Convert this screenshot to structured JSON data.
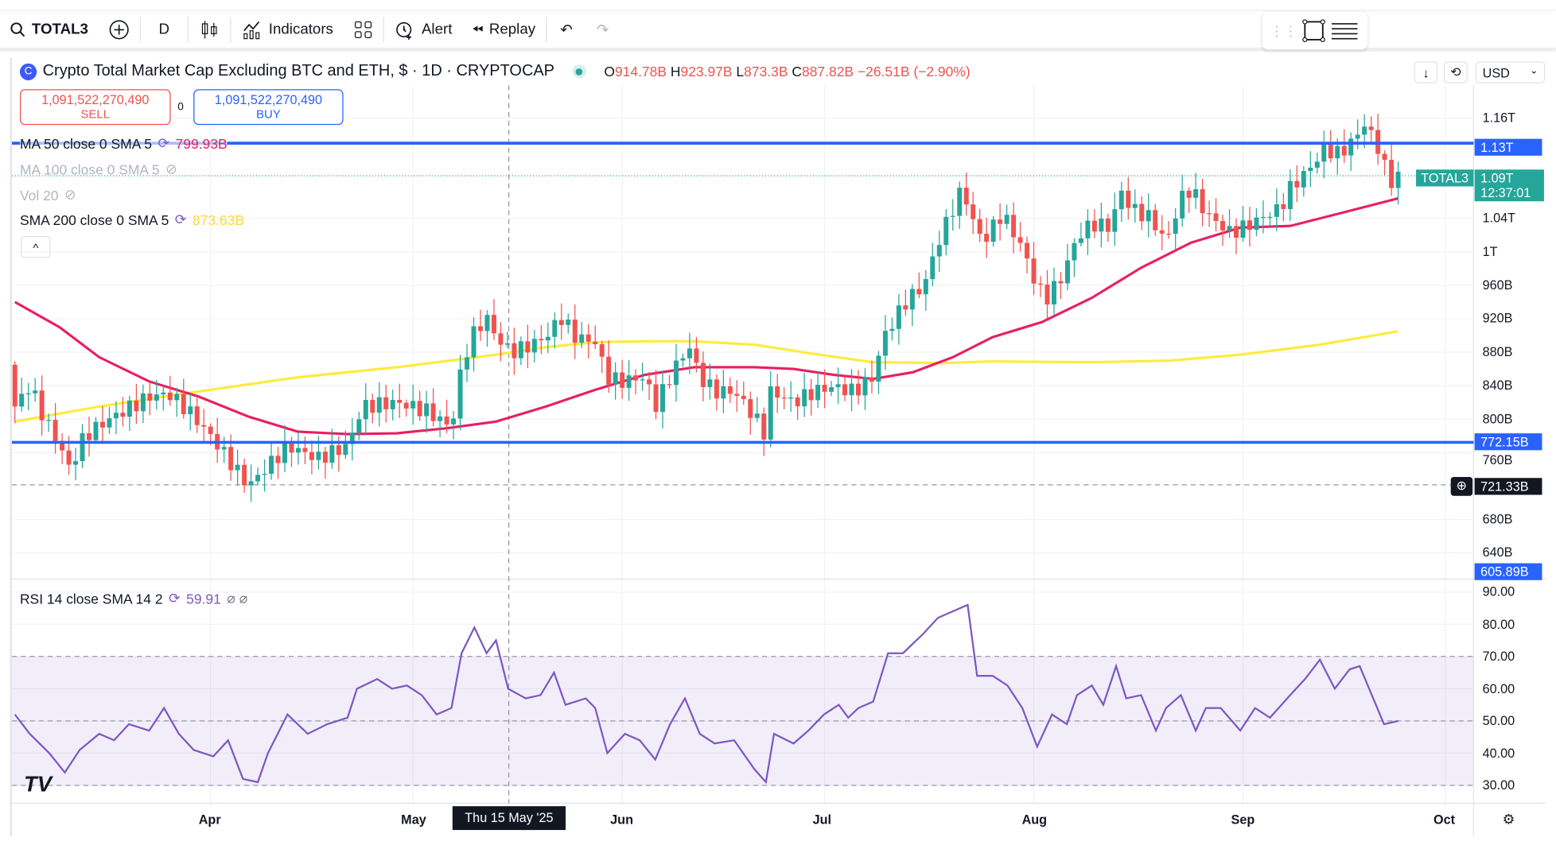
{
  "toolbar": {
    "symbol": "TOTAL3",
    "interval": "D",
    "indicators": "Indicators",
    "alert": "Alert",
    "replay": "Replay"
  },
  "header": {
    "title": "Crypto Total Market Cap Excluding BTC and ETH, $ · 1D · CRYPTOCAP",
    "o_label": "O",
    "o": "914.78B",
    "h_label": "H",
    "h": "923.97B",
    "l_label": "L",
    "l": "873.3B",
    "c_label": "C",
    "c": "887.82B",
    "change": "−26.51B (−2.90%)",
    "currency": "USD"
  },
  "trade": {
    "sell_price": "1,091,522,270,490",
    "sell": "SELL",
    "spread": "0",
    "buy_price": "1,091,522,270,490",
    "buy": "BUY"
  },
  "indicators": [
    {
      "label": "MA 50 close 0 SMA 5",
      "value": "799.93B"
    },
    {
      "label": "MA 100 close 0 SMA 5"
    },
    {
      "label": "Vol 20"
    },
    {
      "label": "SMA 200 close 0 SMA 5",
      "value": "873.63B"
    }
  ],
  "rsi": {
    "label": "RSI 14 close SMA 14 2",
    "value": "59.91"
  },
  "colors": {
    "up": "#26a69a",
    "down": "#ef5350",
    "ma50": "#e91e63",
    "sma200": "#ffeb3b",
    "rsi": "#7e57c2",
    "hline": "#2962ff"
  },
  "axis": {
    "price_ticks": [
      {
        "v": 1160,
        "t": "1.16T"
      },
      {
        "v": 1040,
        "t": "1.04T"
      },
      {
        "v": 1000,
        "t": "1T"
      },
      {
        "v": 960,
        "t": "960B"
      },
      {
        "v": 920,
        "t": "920B"
      },
      {
        "v": 880,
        "t": "880B"
      },
      {
        "v": 840,
        "t": "840B"
      },
      {
        "v": 800,
        "t": "800B"
      },
      {
        "v": 760,
        "t": "760B"
      },
      {
        "v": 680,
        "t": "680B"
      },
      {
        "v": 640,
        "t": "640B"
      }
    ],
    "rsi_ticks": [
      "90.00",
      "80.00",
      "70.00",
      "60.00",
      "50.00",
      "40.00",
      "30.00"
    ],
    "months": [
      {
        "day": 29,
        "t": "Apr"
      },
      {
        "day": 59,
        "t": "May"
      },
      {
        "day": 90,
        "t": "Jun"
      },
      {
        "day": 120,
        "t": "Jul"
      },
      {
        "day": 151,
        "t": "Aug"
      },
      {
        "day": 182,
        "t": "Sep"
      },
      {
        "day": 212,
        "t": "Oct"
      }
    ],
    "crosshair_date": "Thu 15 May '25"
  },
  "tags": {
    "upper_level": "1.13T",
    "lower_level": "772.15B",
    "last_symbol": "TOTAL3",
    "last_price": "1.09T",
    "countdown": "12:37:01",
    "cursor_price": "721.33B",
    "pane_bottom": "605.89B"
  },
  "chart_data": {
    "type": "candlestick",
    "title": "Crypto Total Market Cap Excluding BTC and ETH",
    "x_unit": "days since 3 Mar 2025",
    "y_unit": "B USD",
    "ylim": [
      600,
      1190
    ],
    "close_anchors": [
      [
        0,
        815
      ],
      [
        2.2,
        840
      ],
      [
        4.4,
        800
      ],
      [
        6.6,
        770
      ],
      [
        8.1,
        740
      ],
      [
        10.3,
        780
      ],
      [
        14,
        800
      ],
      [
        19.9,
        827
      ],
      [
        22.8,
        830
      ],
      [
        25.7,
        810
      ],
      [
        29,
        780
      ],
      [
        34.6,
        720
      ],
      [
        37.5,
        744
      ],
      [
        40.4,
        768
      ],
      [
        44.9,
        753
      ],
      [
        49.3,
        768
      ],
      [
        51.5,
        815
      ],
      [
        56.6,
        820
      ],
      [
        61,
        810
      ],
      [
        64.7,
        790
      ],
      [
        66.2,
        862
      ],
      [
        67.6,
        898
      ],
      [
        69.9,
        922
      ],
      [
        71.3,
        898
      ],
      [
        73.5,
        880
      ],
      [
        75.7,
        886
      ],
      [
        78.7,
        898
      ],
      [
        80.9,
        922
      ],
      [
        83.1,
        898
      ],
      [
        86,
        892
      ],
      [
        87.8,
        850
      ],
      [
        89.7,
        845
      ],
      [
        93.4,
        850
      ],
      [
        94.9,
        815
      ],
      [
        97.8,
        862
      ],
      [
        100,
        886
      ],
      [
        101.5,
        850
      ],
      [
        103.7,
        833
      ],
      [
        106.6,
        833
      ],
      [
        109.6,
        803
      ],
      [
        111.3,
        780
      ],
      [
        111.9,
        833
      ],
      [
        115.4,
        820
      ],
      [
        118.4,
        833
      ],
      [
        121.3,
        839
      ],
      [
        124.3,
        833
      ],
      [
        127.2,
        850
      ],
      [
        128.7,
        898
      ],
      [
        130.1,
        916
      ],
      [
        132.4,
        945
      ],
      [
        134.6,
        957
      ],
      [
        136.8,
        1011
      ],
      [
        139,
        1052
      ],
      [
        140.4,
        1076
      ],
      [
        141.9,
        1040
      ],
      [
        143.4,
        1011
      ],
      [
        146.3,
        1046
      ],
      [
        149.3,
        1005
      ],
      [
        151.5,
        957
      ],
      [
        152.9,
        945
      ],
      [
        155.1,
        969
      ],
      [
        157.4,
        1017
      ],
      [
        159.6,
        1034
      ],
      [
        162.5,
        1029
      ],
      [
        163.7,
        1076
      ],
      [
        165.4,
        1052
      ],
      [
        168.4,
        1040
      ],
      [
        170.6,
        1011
      ],
      [
        172.8,
        1064
      ],
      [
        174.3,
        1076
      ],
      [
        176.5,
        1046
      ],
      [
        180.1,
        1023
      ],
      [
        182,
        1029
      ],
      [
        184.6,
        1040
      ],
      [
        187.5,
        1052
      ],
      [
        189,
        1076
      ],
      [
        191.9,
        1100
      ],
      [
        194.1,
        1123
      ],
      [
        196.3,
        1117
      ],
      [
        198.5,
        1135
      ],
      [
        200,
        1153
      ],
      [
        202.2,
        1123
      ],
      [
        203.7,
        1082
      ],
      [
        205,
        1091
      ]
    ],
    "ma50": [
      [
        0,
        940
      ],
      [
        6.6,
        910
      ],
      [
        12.5,
        874
      ],
      [
        19.9,
        845
      ],
      [
        27.2,
        827
      ],
      [
        34.6,
        803
      ],
      [
        41.9,
        785
      ],
      [
        49.3,
        782
      ],
      [
        56.6,
        783
      ],
      [
        64,
        789
      ],
      [
        71.3,
        797
      ],
      [
        78.7,
        815
      ],
      [
        86,
        835
      ],
      [
        93.4,
        853
      ],
      [
        100.7,
        862
      ],
      [
        109.6,
        862
      ],
      [
        115.4,
        860
      ],
      [
        121.3,
        853
      ],
      [
        127.2,
        848
      ],
      [
        133.1,
        856
      ],
      [
        139,
        874
      ],
      [
        144.9,
        898
      ],
      [
        152.2,
        916
      ],
      [
        159.6,
        945
      ],
      [
        166.9,
        981
      ],
      [
        174.3,
        1011
      ],
      [
        181.6,
        1029
      ],
      [
        189,
        1031
      ],
      [
        196.3,
        1046
      ],
      [
        205,
        1064
      ]
    ],
    "sma200": [
      [
        0,
        797
      ],
      [
        12.5,
        815
      ],
      [
        27.2,
        833
      ],
      [
        41.9,
        850
      ],
      [
        56.6,
        862
      ],
      [
        71.3,
        877
      ],
      [
        78.7,
        886
      ],
      [
        86,
        892
      ],
      [
        93.4,
        893
      ],
      [
        100.7,
        893
      ],
      [
        109.6,
        889
      ],
      [
        118.4,
        878
      ],
      [
        127.2,
        868
      ],
      [
        137.5,
        867
      ],
      [
        144.9,
        869
      ],
      [
        159.6,
        868
      ],
      [
        171.3,
        870
      ],
      [
        181.6,
        877
      ],
      [
        193.4,
        889
      ],
      [
        205,
        905
      ]
    ],
    "hlines": [
      1130,
      772.15
    ],
    "cursor_level": 721.33,
    "last_price": 1091,
    "crosshair_day": 73.2,
    "rsi_series": [
      [
        0,
        52
      ],
      [
        2.2,
        46
      ],
      [
        5.1,
        40
      ],
      [
        7.4,
        34
      ],
      [
        9.6,
        41
      ],
      [
        12.5,
        46
      ],
      [
        14.7,
        44
      ],
      [
        16.9,
        49
      ],
      [
        19.9,
        47
      ],
      [
        22.1,
        54
      ],
      [
        24.3,
        46
      ],
      [
        26.5,
        41
      ],
      [
        29.4,
        39
      ],
      [
        31.6,
        44
      ],
      [
        33.8,
        32
      ],
      [
        36,
        31
      ],
      [
        37.5,
        40
      ],
      [
        40.4,
        52
      ],
      [
        43.4,
        46
      ],
      [
        46.3,
        49
      ],
      [
        49.3,
        51
      ],
      [
        50.7,
        60
      ],
      [
        53.7,
        63
      ],
      [
        55.9,
        60
      ],
      [
        58.1,
        61
      ],
      [
        60.3,
        58
      ],
      [
        62.5,
        52
      ],
      [
        64.7,
        54
      ],
      [
        66.2,
        71
      ],
      [
        68.1,
        79
      ],
      [
        69.9,
        71
      ],
      [
        71.3,
        75
      ],
      [
        73.1,
        60
      ],
      [
        75.7,
        57
      ],
      [
        77.9,
        58
      ],
      [
        79.9,
        65
      ],
      [
        81.6,
        55
      ],
      [
        84.6,
        57
      ],
      [
        86,
        54
      ],
      [
        87.8,
        40
      ],
      [
        90.4,
        46
      ],
      [
        92.6,
        44
      ],
      [
        94.9,
        38
      ],
      [
        97.1,
        49
      ],
      [
        99.3,
        57
      ],
      [
        101.5,
        46
      ],
      [
        103.7,
        43
      ],
      [
        106.6,
        44
      ],
      [
        109.6,
        35
      ],
      [
        111.3,
        31
      ],
      [
        112.5,
        46
      ],
      [
        115.4,
        43
      ],
      [
        117.6,
        47
      ],
      [
        119.9,
        52
      ],
      [
        122.1,
        55
      ],
      [
        123.5,
        51
      ],
      [
        125,
        54
      ],
      [
        127.2,
        56
      ],
      [
        129.4,
        71
      ],
      [
        131.6,
        71
      ],
      [
        134.6,
        77
      ],
      [
        136.8,
        82
      ],
      [
        139,
        84
      ],
      [
        141.2,
        86
      ],
      [
        142.6,
        64
      ],
      [
        144.9,
        64
      ],
      [
        147.1,
        61
      ],
      [
        149.3,
        54
      ],
      [
        151.5,
        42
      ],
      [
        153.7,
        52
      ],
      [
        155.9,
        49
      ],
      [
        157.4,
        58
      ],
      [
        159.6,
        61
      ],
      [
        161.3,
        55
      ],
      [
        163.2,
        67
      ],
      [
        164.7,
        57
      ],
      [
        166.9,
        58
      ],
      [
        169.1,
        47
      ],
      [
        170.6,
        54
      ],
      [
        172.8,
        58
      ],
      [
        175,
        47
      ],
      [
        176.5,
        54
      ],
      [
        178.7,
        54
      ],
      [
        181.6,
        47
      ],
      [
        183.8,
        54
      ],
      [
        186,
        51
      ],
      [
        189,
        58
      ],
      [
        191.2,
        63
      ],
      [
        193.4,
        69
      ],
      [
        195.6,
        60
      ],
      [
        197.8,
        66
      ],
      [
        199.3,
        67
      ],
      [
        200.7,
        60
      ],
      [
        202.9,
        49
      ],
      [
        205,
        50
      ]
    ],
    "rsi_band": [
      30,
      70
    ],
    "rsi_mid": 50,
    "rsi_ylim": [
      25,
      95
    ]
  }
}
